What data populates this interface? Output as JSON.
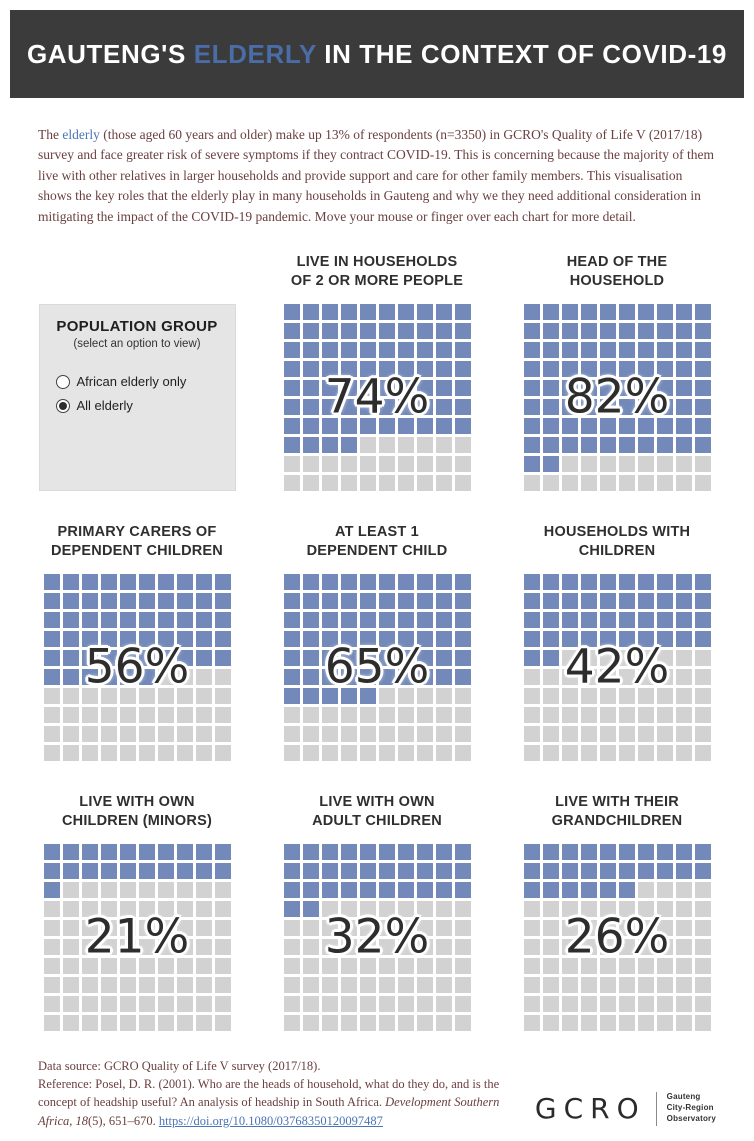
{
  "header": {
    "title_prefix": "GAUTENG'S ",
    "title_highlight": "ELDERLY",
    "title_suffix": " IN THE CONTEXT OF COVID-19"
  },
  "intro": {
    "text_before_link": "The ",
    "link_text": "elderly",
    "text_after_link": " (those aged 60 years and older) make up 13% of respondents (n=3350) in GCRO's Quality of Life V (2017/18) survey and face greater risk of severe symptoms if they contract COVID-19. This is concerning because the majority of them live with other relatives in larger households and provide support and care for other family members. This visualisation shows the key roles that the elderly play in many households in Gauteng and why we they need additional consideration in mitigating the impact of the COVID-19 pandemic. Move your mouse or finger over each chart for more detail."
  },
  "population_group": {
    "title": "POPULATION GROUP",
    "subtitle": "(select an option to view)",
    "options": [
      {
        "label": "African elderly only",
        "selected": false
      },
      {
        "label": "All elderly",
        "selected": true
      }
    ]
  },
  "chart_data": {
    "type": "waffle",
    "grid_rows": 10,
    "grid_cols": 10,
    "fill_color": "#7289ba",
    "empty_color": "#d2d2d2",
    "value_unit": "percent",
    "charts": [
      {
        "title": "LIVE IN HOUSEHOLDS OF 2 OR MORE PEOPLE",
        "title_lines": [
          "LIVE IN HOUSEHOLDS",
          "OF 2 OR MORE PEOPLE"
        ],
        "value_percent": 74,
        "label": "74%"
      },
      {
        "title": "HEAD OF THE HOUSEHOLD",
        "title_lines": [
          "HEAD OF THE",
          "HOUSEHOLD"
        ],
        "value_percent": 82,
        "label": "82%"
      },
      {
        "title": "PRIMARY CARERS OF DEPENDENT CHILDREN",
        "title_lines": [
          "PRIMARY CARERS OF",
          "DEPENDENT CHILDREN"
        ],
        "value_percent": 56,
        "label": "56%"
      },
      {
        "title": "AT LEAST 1 DEPENDENT CHILD",
        "title_lines": [
          "AT LEAST 1",
          "DEPENDENT CHILD"
        ],
        "value_percent": 65,
        "label": "65%"
      },
      {
        "title": "HOUSEHOLDS WITH CHILDREN",
        "title_lines": [
          "HOUSEHOLDS WITH",
          "CHILDREN"
        ],
        "value_percent": 42,
        "label": "42%"
      },
      {
        "title": "LIVE WITH OWN CHILDREN (MINORS)",
        "title_lines": [
          "LIVE WITH OWN",
          "CHILDREN (MINORS)"
        ],
        "value_percent": 21,
        "label": "21%"
      },
      {
        "title": "LIVE WITH OWN ADULT CHILDREN",
        "title_lines": [
          "LIVE WITH OWN",
          "ADULT CHILDREN"
        ],
        "value_percent": 32,
        "label": "32%"
      },
      {
        "title": "LIVE WITH THEIR GRANDCHILDREN",
        "title_lines": [
          "LIVE WITH THEIR",
          "GRANDCHILDREN"
        ],
        "value_percent": 26,
        "label": "26%"
      }
    ]
  },
  "footer": {
    "data_source": "Data source: GCRO Quality of Life V survey (2017/18).",
    "reference_before_italic": "Reference: Posel, D. R. (2001). Who are the heads of household, what do they do, and is the concept of headship useful? An analysis of headship in South Africa. ",
    "reference_italic": "Development Southern Africa, 18",
    "reference_after_italic": "(5), 651–670. ",
    "reference_link": "https://doi.org/10.1080/03768350120097487",
    "logo": {
      "wordmark": "GCRO",
      "tagline_lines": [
        "Gauteng",
        "City-Region",
        "Observatory"
      ]
    }
  },
  "colors": {
    "banner_bg": "#3b3b3b",
    "banner_text": "#ffffff",
    "highlight_blue": "#4a6da8",
    "body_text_maroon": "#6b4040",
    "link_blue": "#4a74b8",
    "panel_bg": "#e5e5e5",
    "waffle_fill": "#7289ba",
    "waffle_empty": "#d2d2d2",
    "percent_text": "#2d2d2d"
  }
}
